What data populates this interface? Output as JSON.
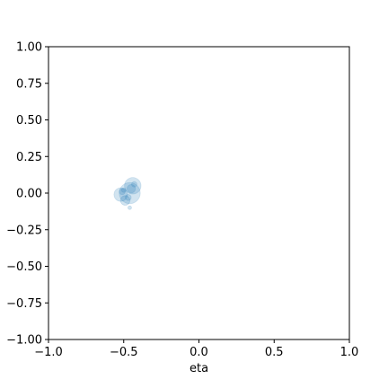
{
  "chart_data": {
    "type": "scatter",
    "title": "",
    "xlabel": "eta",
    "ylabel": "",
    "xlim": [
      -1.0,
      1.0
    ],
    "ylim": [
      -1.0,
      1.0
    ],
    "grid": false,
    "x_ticks": [
      -1.0,
      -0.5,
      0.0,
      0.5,
      1.0
    ],
    "x_tick_labels": [
      "−1.0",
      "−0.5",
      "0.0",
      "0.5",
      "1.0"
    ],
    "y_ticks": [
      1.0,
      0.75,
      0.5,
      0.25,
      0.0,
      -0.25,
      -0.5,
      -0.75,
      -1.0
    ],
    "y_tick_labels": [
      "1.00",
      "0.75",
      "0.50",
      "0.25",
      "0.00",
      "−0.25",
      "−0.50",
      "−0.75",
      "−1.00"
    ],
    "colors": {
      "marker": "#1f77b4",
      "axes": "#000000",
      "background": "#ffffff"
    },
    "series": [
      {
        "points": [
          {
            "x": -0.44,
            "y": 0.05,
            "r": 0.055
          },
          {
            "x": -0.46,
            "y": 0.0,
            "r": 0.07
          },
          {
            "x": -0.52,
            "y": -0.01,
            "r": 0.045
          },
          {
            "x": -0.51,
            "y": 0.01,
            "r": 0.02
          },
          {
            "x": -0.45,
            "y": 0.03,
            "r": 0.028
          },
          {
            "x": -0.49,
            "y": -0.05,
            "r": 0.032
          },
          {
            "x": -0.47,
            "y": -0.03,
            "r": 0.02
          },
          {
            "x": -0.46,
            "y": -0.1,
            "r": 0.012
          },
          {
            "x": -0.5,
            "y": 0.02,
            "r": 0.015
          },
          {
            "x": -0.43,
            "y": 0.06,
            "r": 0.018
          }
        ],
        "opacity": 0.2
      }
    ]
  }
}
